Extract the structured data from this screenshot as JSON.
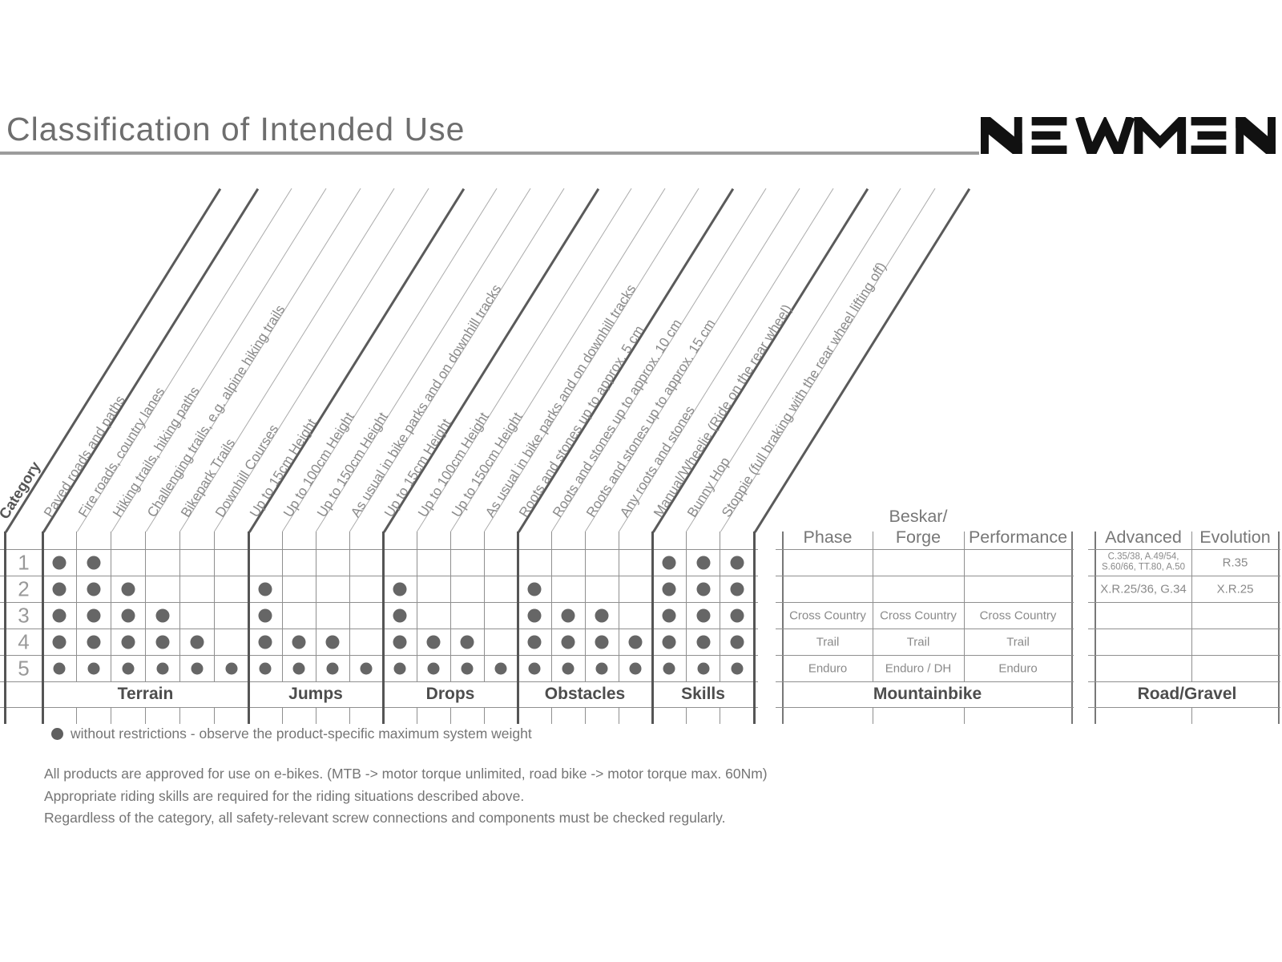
{
  "header": {
    "title": "Classification of Intended Use",
    "logo_text": "NEWMEN"
  },
  "matrix": {
    "corner_label": "Category",
    "row_labels": [
      "1",
      "2",
      "3",
      "4",
      "5"
    ],
    "groups": [
      {
        "label": "Terrain",
        "columns": [
          "Paved roads and paths",
          "Fire roads, country lanes",
          "Hiking trails, hiking paths",
          "Challenging trails, e.g. alpine hiking trails",
          "Bikepark Trails",
          "Downhill Courses"
        ],
        "dots": [
          [
            1,
            1,
            0,
            0,
            0,
            0
          ],
          [
            1,
            1,
            1,
            0,
            0,
            0
          ],
          [
            1,
            1,
            1,
            1,
            0,
            0
          ],
          [
            1,
            1,
            1,
            1,
            1,
            0
          ],
          [
            1,
            1,
            1,
            1,
            1,
            1
          ]
        ]
      },
      {
        "label": "Jumps",
        "columns": [
          "Up to 15cm Height",
          "Up to 100cm Height",
          "Up to 150cm Height",
          "As usual in bike parks and on downhill tracks"
        ],
        "dots": [
          [
            0,
            0,
            0,
            0
          ],
          [
            1,
            0,
            0,
            0
          ],
          [
            1,
            0,
            0,
            0
          ],
          [
            1,
            1,
            1,
            0
          ],
          [
            1,
            1,
            1,
            1
          ]
        ]
      },
      {
        "label": "Drops",
        "columns": [
          "Up to 15cm Height",
          "Up to 100cm Height",
          "Up to 150cm Height",
          "As usual in bike parks and on downhill tracks"
        ],
        "dots": [
          [
            0,
            0,
            0,
            0
          ],
          [
            1,
            0,
            0,
            0
          ],
          [
            1,
            0,
            0,
            0
          ],
          [
            1,
            1,
            1,
            0
          ],
          [
            1,
            1,
            1,
            1
          ]
        ]
      },
      {
        "label": "Obstacles",
        "columns": [
          "Roots and stones up to approx. 5 cm",
          "Roots and stones up to approx. 10 cm",
          "Roots and stones up to approx. 15 cm",
          "Any roots and stones"
        ],
        "dots": [
          [
            0,
            0,
            0,
            0
          ],
          [
            1,
            0,
            0,
            0
          ],
          [
            1,
            1,
            1,
            0
          ],
          [
            1,
            1,
            1,
            1
          ],
          [
            1,
            1,
            1,
            1
          ]
        ]
      },
      {
        "label": "Skills",
        "columns": [
          "Manual/Wheelie (Ride on the rear wheel)",
          "Bunny Hop",
          "Stoppie (full braking with the rear wheel lifting off)"
        ],
        "dots": [
          [
            1,
            1,
            1
          ],
          [
            1,
            1,
            1
          ],
          [
            1,
            1,
            1
          ],
          [
            1,
            1,
            1
          ],
          [
            1,
            1,
            1
          ]
        ]
      }
    ]
  },
  "product_tables": [
    {
      "label": "Mountainbike",
      "columns": [
        {
          "header": "Phase",
          "cells": [
            "",
            "",
            "Cross Country",
            "Trail",
            "Enduro"
          ]
        },
        {
          "header": "Beskar/\nForge",
          "cells": [
            "",
            "",
            "Cross Country",
            "Trail",
            "Enduro / DH"
          ]
        },
        {
          "header": "Performance",
          "cells": [
            "",
            "",
            "Cross Country",
            "Trail",
            "Enduro"
          ]
        }
      ]
    },
    {
      "label": "Road/Gravel",
      "columns": [
        {
          "header": "Advanced",
          "cells": [
            "C.35/38, A.49/54,\nS.60/66, TT.80, A.50",
            "X.R.25/36, G.34",
            "",
            "",
            ""
          ]
        },
        {
          "header": "Evolution",
          "cells": [
            "R.35",
            "X.R.25",
            "",
            "",
            ""
          ]
        }
      ]
    }
  ],
  "legend": {
    "dot_symbol": "without-restrictions-dot",
    "text": "without restrictions - observe the product-specific maximum system weight"
  },
  "footnotes": [
    "All products are approved for use on e-bikes. (MTB -> motor torque unlimited, road bike -> motor torque max. 60Nm)",
    "Appropriate riding skills are required for the riding situations described above.",
    "Regardless of the category, all safety-relevant screw connections and components must be checked regularly."
  ],
  "colors": {
    "grid_thin": "#8f8f8f",
    "grid_thick": "#555555",
    "diag_thin": "#ababab",
    "diag_thick": "#5a5a5a",
    "dot": "#666666",
    "text_muted": "#8a8a8a",
    "logo": "#111111"
  }
}
